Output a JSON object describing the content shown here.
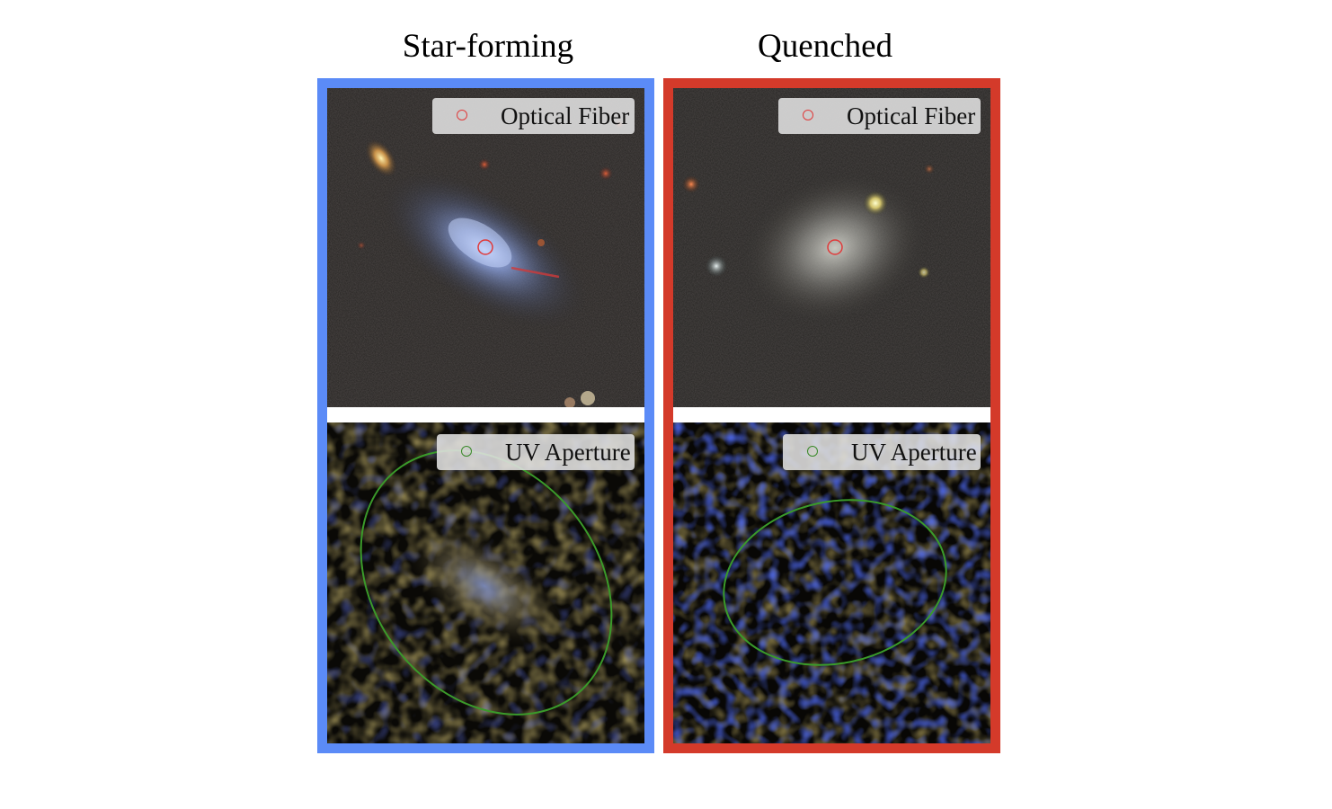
{
  "columns": [
    {
      "title": "Star-forming",
      "frame_color": "#5b8bf7",
      "top_legend": "Optical Fiber",
      "bottom_legend": "UV Aperture"
    },
    {
      "title": "Quenched",
      "frame_color": "#d43a2a",
      "top_legend": "Optical Fiber",
      "bottom_legend": "UV Aperture"
    }
  ],
  "marker_colors": {
    "fiber": "#e03a3a",
    "aperture": "#3a8a2a"
  }
}
